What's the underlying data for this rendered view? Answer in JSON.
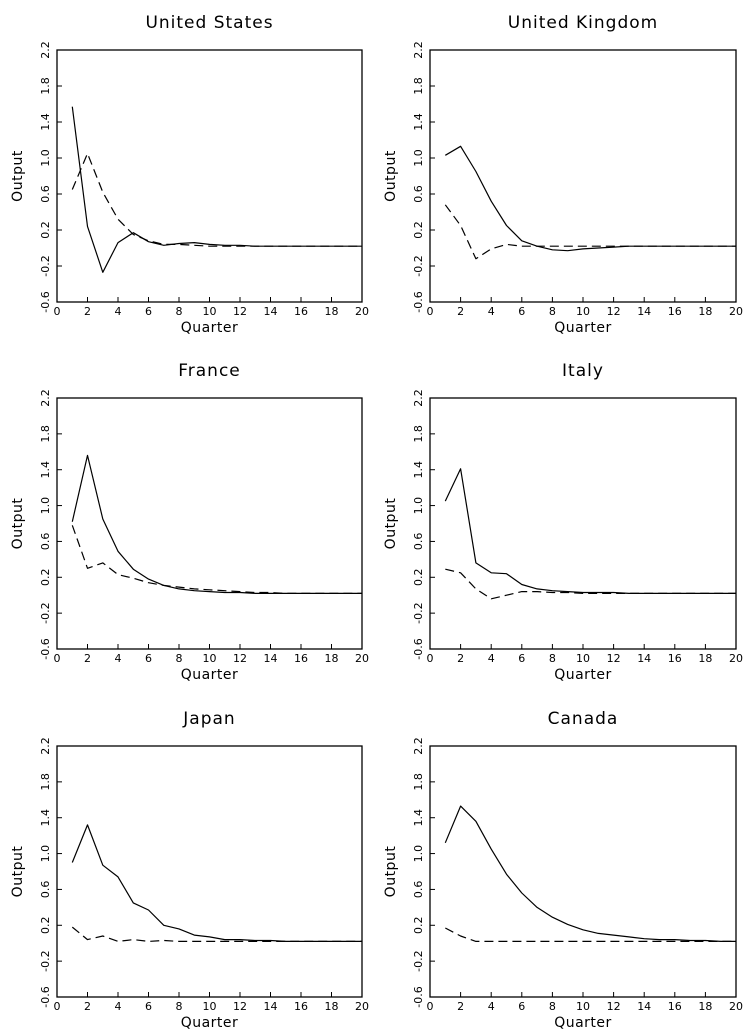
{
  "chart_data": [
    {
      "type": "line",
      "title": "United States",
      "xlabel": "Quarter",
      "ylabel": "Output",
      "xlim": [
        0,
        20
      ],
      "ylim": [
        -0.6,
        2.2
      ],
      "xticks": [
        0,
        2,
        4,
        6,
        8,
        10,
        12,
        14,
        16,
        18,
        20
      ],
      "yticks": [
        -0.6,
        -0.2,
        0.2,
        0.6,
        1.0,
        1.4,
        1.8,
        2.2
      ],
      "xtick_labels": [
        "0",
        "2",
        "4",
        "6",
        "8",
        "10",
        "12",
        "14",
        "16",
        "18",
        "20"
      ],
      "ytick_labels": [
        "-0.6",
        "-0.2",
        "0.2",
        "0.6",
        "1.0",
        "1.4",
        "1.8",
        "2.2"
      ],
      "grid": false,
      "series": [
        {
          "style": "solid",
          "x": [
            1,
            2,
            3,
            4,
            5,
            6,
            7,
            8,
            9,
            10,
            11,
            12,
            13,
            14,
            15,
            16,
            17,
            18,
            19,
            20
          ],
          "y": [
            1.57,
            0.24,
            -0.27,
            0.06,
            0.17,
            0.07,
            0.03,
            0.05,
            0.06,
            0.04,
            0.03,
            0.03,
            0.02,
            0.02,
            0.02,
            0.02,
            0.02,
            0.02,
            0.02,
            0.02
          ]
        },
        {
          "style": "dashed",
          "x": [
            1,
            2,
            3,
            4,
            5,
            6,
            7,
            8,
            9,
            10,
            11,
            12,
            13,
            14,
            15,
            16,
            17,
            18,
            19,
            20
          ],
          "y": [
            0.65,
            1.05,
            0.62,
            0.32,
            0.15,
            0.08,
            0.04,
            0.04,
            0.03,
            0.02,
            0.02,
            0.02,
            0.02,
            0.02,
            0.02,
            0.02,
            0.02,
            0.02,
            0.02,
            0.02
          ]
        }
      ]
    },
    {
      "type": "line",
      "title": "United Kingdom",
      "xlabel": "Quarter",
      "ylabel": "Output",
      "xlim": [
        0,
        20
      ],
      "ylim": [
        -0.6,
        2.2
      ],
      "xticks": [
        0,
        2,
        4,
        6,
        8,
        10,
        12,
        14,
        16,
        18,
        20
      ],
      "yticks": [
        -0.6,
        -0.2,
        0.2,
        0.6,
        1.0,
        1.4,
        1.8,
        2.2
      ],
      "xtick_labels": [
        "0",
        "2",
        "4",
        "6",
        "8",
        "10",
        "12",
        "14",
        "16",
        "18",
        "20"
      ],
      "ytick_labels": [
        "-0.6",
        "-0.2",
        "0.2",
        "0.6",
        "1.0",
        "1.4",
        "1.8",
        "2.2"
      ],
      "grid": false,
      "series": [
        {
          "style": "solid",
          "x": [
            1,
            2,
            3,
            4,
            5,
            6,
            7,
            8,
            9,
            10,
            11,
            12,
            13,
            14,
            15,
            16,
            17,
            18,
            19,
            20
          ],
          "y": [
            1.03,
            1.13,
            0.85,
            0.52,
            0.25,
            0.08,
            0.02,
            -0.02,
            -0.03,
            -0.01,
            0.0,
            0.01,
            0.02,
            0.02,
            0.02,
            0.02,
            0.02,
            0.02,
            0.02,
            0.02
          ]
        },
        {
          "style": "dashed",
          "x": [
            1,
            2,
            3,
            4,
            5,
            6,
            7,
            8,
            9,
            10,
            11,
            12,
            13,
            14,
            15,
            16,
            17,
            18,
            19,
            20
          ],
          "y": [
            0.48,
            0.25,
            -0.12,
            -0.01,
            0.04,
            0.02,
            0.02,
            0.02,
            0.02,
            0.02,
            0.02,
            0.02,
            0.02,
            0.02,
            0.02,
            0.02,
            0.02,
            0.02,
            0.02,
            0.02
          ]
        }
      ]
    },
    {
      "type": "line",
      "title": "France",
      "xlabel": "Quarter",
      "ylabel": "Output",
      "xlim": [
        0,
        20
      ],
      "ylim": [
        -0.6,
        2.2
      ],
      "xticks": [
        0,
        2,
        4,
        6,
        8,
        10,
        12,
        14,
        16,
        18,
        20
      ],
      "yticks": [
        -0.6,
        -0.2,
        0.2,
        0.6,
        1.0,
        1.4,
        1.8,
        2.2
      ],
      "xtick_labels": [
        "0",
        "2",
        "4",
        "6",
        "8",
        "10",
        "12",
        "14",
        "16",
        "18",
        "20"
      ],
      "ytick_labels": [
        "-0.6",
        "-0.2",
        "0.2",
        "0.6",
        "1.0",
        "1.4",
        "1.8",
        "2.2"
      ],
      "grid": false,
      "series": [
        {
          "style": "solid",
          "x": [
            1,
            2,
            3,
            4,
            5,
            6,
            7,
            8,
            9,
            10,
            11,
            12,
            13,
            14,
            15,
            16,
            17,
            18,
            19,
            20
          ],
          "y": [
            0.82,
            1.56,
            0.85,
            0.49,
            0.29,
            0.18,
            0.11,
            0.07,
            0.05,
            0.04,
            0.03,
            0.03,
            0.02,
            0.02,
            0.02,
            0.02,
            0.02,
            0.02,
            0.02,
            0.02
          ]
        },
        {
          "style": "dashed",
          "x": [
            1,
            2,
            3,
            4,
            5,
            6,
            7,
            8,
            9,
            10,
            11,
            12,
            13,
            14,
            15,
            16,
            17,
            18,
            19,
            20
          ],
          "y": [
            0.78,
            0.3,
            0.36,
            0.23,
            0.19,
            0.14,
            0.11,
            0.09,
            0.07,
            0.06,
            0.05,
            0.04,
            0.03,
            0.03,
            0.02,
            0.02,
            0.02,
            0.02,
            0.02,
            0.02
          ]
        }
      ]
    },
    {
      "type": "line",
      "title": "Italy",
      "xlabel": "Quarter",
      "ylabel": "Output",
      "xlim": [
        0,
        20
      ],
      "ylim": [
        -0.6,
        2.2
      ],
      "xticks": [
        0,
        2,
        4,
        6,
        8,
        10,
        12,
        14,
        16,
        18,
        20
      ],
      "yticks": [
        -0.6,
        -0.2,
        0.2,
        0.6,
        1.0,
        1.4,
        1.8,
        2.2
      ],
      "xtick_labels": [
        "0",
        "2",
        "4",
        "6",
        "8",
        "10",
        "12",
        "14",
        "16",
        "18",
        "20"
      ],
      "ytick_labels": [
        "-0.6",
        "-0.2",
        "0.2",
        "0.6",
        "1.0",
        "1.4",
        "1.8",
        "2.2"
      ],
      "grid": false,
      "series": [
        {
          "style": "solid",
          "x": [
            1,
            2,
            3,
            4,
            5,
            6,
            7,
            8,
            9,
            10,
            11,
            12,
            13,
            14,
            15,
            16,
            17,
            18,
            19,
            20
          ],
          "y": [
            1.05,
            1.41,
            0.36,
            0.25,
            0.24,
            0.12,
            0.07,
            0.05,
            0.04,
            0.03,
            0.03,
            0.03,
            0.02,
            0.02,
            0.02,
            0.02,
            0.02,
            0.02,
            0.02,
            0.02
          ]
        },
        {
          "style": "dashed",
          "x": [
            1,
            2,
            3,
            4,
            5,
            6,
            7,
            8,
            9,
            10,
            11,
            12,
            13,
            14,
            15,
            16,
            17,
            18,
            19,
            20
          ],
          "y": [
            0.29,
            0.25,
            0.07,
            -0.04,
            0.0,
            0.04,
            0.04,
            0.03,
            0.03,
            0.02,
            0.02,
            0.02,
            0.02,
            0.02,
            0.02,
            0.02,
            0.02,
            0.02,
            0.02,
            0.02
          ]
        }
      ]
    },
    {
      "type": "line",
      "title": "Japan",
      "xlabel": "Quarter",
      "ylabel": "Output",
      "xlim": [
        0,
        20
      ],
      "ylim": [
        -0.6,
        2.2
      ],
      "xticks": [
        0,
        2,
        4,
        6,
        8,
        10,
        12,
        14,
        16,
        18,
        20
      ],
      "yticks": [
        -0.6,
        -0.2,
        0.2,
        0.6,
        1.0,
        1.4,
        1.8,
        2.2
      ],
      "xtick_labels": [
        "0",
        "2",
        "4",
        "6",
        "8",
        "10",
        "12",
        "14",
        "16",
        "18",
        "20"
      ],
      "ytick_labels": [
        "-0.6",
        "-0.2",
        "0.2",
        "0.6",
        "1.0",
        "1.4",
        "1.8",
        "2.2"
      ],
      "grid": false,
      "series": [
        {
          "style": "solid",
          "x": [
            1,
            2,
            3,
            4,
            5,
            6,
            7,
            8,
            9,
            10,
            11,
            12,
            13,
            14,
            15,
            16,
            17,
            18,
            19,
            20
          ],
          "y": [
            0.9,
            1.32,
            0.87,
            0.74,
            0.45,
            0.37,
            0.2,
            0.16,
            0.09,
            0.07,
            0.04,
            0.04,
            0.03,
            0.03,
            0.02,
            0.02,
            0.02,
            0.02,
            0.02,
            0.02
          ]
        },
        {
          "style": "dashed",
          "x": [
            1,
            2,
            3,
            4,
            5,
            6,
            7,
            8,
            9,
            10,
            11,
            12,
            13,
            14,
            15,
            16,
            17,
            18,
            19,
            20
          ],
          "y": [
            0.18,
            0.04,
            0.08,
            0.02,
            0.04,
            0.02,
            0.03,
            0.02,
            0.02,
            0.02,
            0.02,
            0.02,
            0.02,
            0.02,
            0.02,
            0.02,
            0.02,
            0.02,
            0.02,
            0.02
          ]
        }
      ]
    },
    {
      "type": "line",
      "title": "Canada",
      "xlabel": "Quarter",
      "ylabel": "Output",
      "xlim": [
        0,
        20
      ],
      "ylim": [
        -0.6,
        2.2
      ],
      "xticks": [
        0,
        2,
        4,
        6,
        8,
        10,
        12,
        14,
        16,
        18,
        20
      ],
      "yticks": [
        -0.6,
        -0.2,
        0.2,
        0.6,
        1.0,
        1.4,
        1.8,
        2.2
      ],
      "xtick_labels": [
        "0",
        "2",
        "4",
        "6",
        "8",
        "10",
        "12",
        "14",
        "16",
        "18",
        "20"
      ],
      "ytick_labels": [
        "-0.6",
        "-0.2",
        "0.2",
        "0.6",
        "1.0",
        "1.4",
        "1.8",
        "2.2"
      ],
      "grid": false,
      "series": [
        {
          "style": "solid",
          "x": [
            1,
            2,
            3,
            4,
            5,
            6,
            7,
            8,
            9,
            10,
            11,
            12,
            13,
            14,
            15,
            16,
            17,
            18,
            19,
            20
          ],
          "y": [
            1.12,
            1.53,
            1.36,
            1.05,
            0.77,
            0.56,
            0.4,
            0.29,
            0.21,
            0.15,
            0.11,
            0.09,
            0.07,
            0.05,
            0.04,
            0.04,
            0.03,
            0.03,
            0.02,
            0.02
          ]
        },
        {
          "style": "dashed",
          "x": [
            1,
            2,
            3,
            4,
            5,
            6,
            7,
            8,
            9,
            10,
            11,
            12,
            13,
            14,
            15,
            16,
            17,
            18,
            19,
            20
          ],
          "y": [
            0.17,
            0.08,
            0.02,
            0.02,
            0.02,
            0.02,
            0.02,
            0.02,
            0.02,
            0.02,
            0.02,
            0.02,
            0.02,
            0.02,
            0.02,
            0.02,
            0.02,
            0.02,
            0.02,
            0.02
          ]
        }
      ]
    }
  ]
}
